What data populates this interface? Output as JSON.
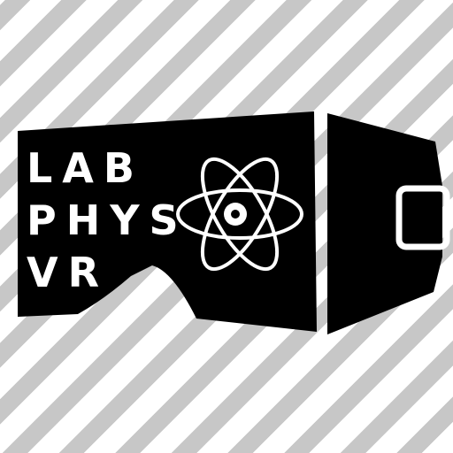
{
  "logo": {
    "lines": [
      "LAB",
      "PHYS",
      "VR"
    ],
    "icon": "atom-icon",
    "device_icon": "vr-headset-icon"
  },
  "colors": {
    "headset": "#000000",
    "text": "#ffffff",
    "stripe_light": "#ffffff",
    "stripe_dark": "#c7c7c7"
  }
}
